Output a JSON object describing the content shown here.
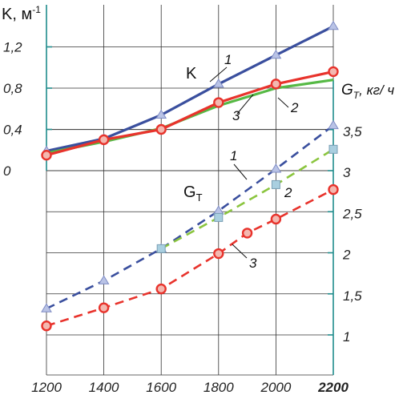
{
  "chart_data": {
    "type": "line",
    "x": [
      1200,
      1400,
      1600,
      1800,
      2000,
      2200
    ],
    "x_tick_labels": [
      "1200",
      "1400",
      "1600",
      "1800",
      "2000",
      "2200"
    ],
    "xlim": [
      1200,
      2200
    ],
    "axis_K": {
      "label": "K, м",
      "label_sup": "-1",
      "tick_labels": [
        "0",
        "0,4",
        "0,8",
        "1,2"
      ],
      "ylim": [
        0,
        1.4
      ]
    },
    "axis_G": {
      "label_main": "G",
      "label_sub": "Т",
      "label_units": ", кг/ ч",
      "tick_labels": [
        "1",
        "1,5",
        "2",
        "2,5",
        "3",
        "3,5"
      ],
      "ylim": [
        0.5,
        4.0
      ]
    },
    "K_label": "K",
    "G_label_main": "G",
    "G_label_sub": "Т",
    "series_K": [
      {
        "name": "1",
        "color": "#3a4f9e",
        "marker": "triangle",
        "values": [
          0.19,
          0.31,
          0.54,
          0.84,
          1.12,
          1.4
        ]
      },
      {
        "name": "3",
        "color": "#56b945",
        "marker": "none",
        "values": [
          0.17,
          0.28,
          0.41,
          0.63,
          0.8,
          0.88
        ]
      },
      {
        "name": "2",
        "color": "#e8332c",
        "marker": "circle",
        "values": [
          0.15,
          0.3,
          0.4,
          0.66,
          0.84,
          0.96
        ]
      }
    ],
    "series_G": [
      {
        "name": "1",
        "color": "#3a4f9e",
        "marker": "triangle",
        "dashed": true,
        "x": [
          1200,
          1400,
          1600,
          1800,
          2000,
          2200
        ],
        "values": [
          1.32,
          1.66,
          2.05,
          2.51,
          3.02,
          3.55
        ]
      },
      {
        "name": "2",
        "color": "#8bc53f",
        "marker": "square",
        "dashed": true,
        "x": [
          1600,
          1800,
          2000,
          2200
        ],
        "values": [
          2.05,
          2.43,
          2.83,
          3.26
        ]
      },
      {
        "name": "3",
        "color": "#e8332c",
        "marker": "circle",
        "dashed": true,
        "x": [
          1200,
          1400,
          1600,
          1800,
          1900,
          2000,
          2200
        ],
        "values": [
          1.11,
          1.33,
          1.56,
          1.99,
          2.24,
          2.41,
          2.77
        ]
      }
    ],
    "curve_numbers": [
      {
        "text": "1",
        "ref": "K1"
      },
      {
        "text": "2",
        "ref": "K2"
      },
      {
        "text": "3",
        "ref": "K3"
      },
      {
        "text": "1",
        "ref": "G1"
      },
      {
        "text": "2",
        "ref": "G2"
      },
      {
        "text": "3",
        "ref": "G3"
      }
    ],
    "grid": true
  }
}
